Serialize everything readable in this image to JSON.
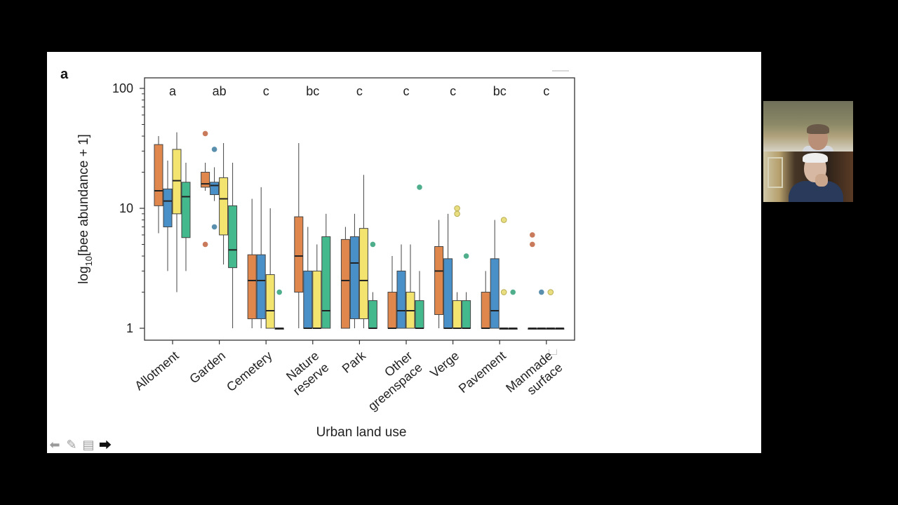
{
  "slide": {
    "panel_letter": "a",
    "controls": [
      {
        "name": "prev-arrow-icon",
        "glyph": "⬅"
      },
      {
        "name": "pen-icon",
        "glyph": "✎"
      },
      {
        "name": "menu-icon",
        "glyph": "▤"
      },
      {
        "name": "next-arrow-icon",
        "glyph": "⮕"
      }
    ]
  },
  "colors": {
    "groups": [
      "#E0874D",
      "#4A90C8",
      "#F2E46E",
      "#45B98E"
    ],
    "outliers": [
      "#C97A5A",
      "#5A8FAD",
      "#E8DE80",
      "#4FAE8C"
    ]
  },
  "chart_data": {
    "type": "boxplot",
    "scale": "log10",
    "title": "",
    "xlabel": "Urban land use",
    "ylabel": "log10[bee abundance + 1]",
    "ylabel_base": "log",
    "ylabel_sub": "10",
    "ylabel_rest": "[bee abundance + 1]",
    "ylim": [
      0.9,
      115
    ],
    "yticks": [
      1,
      10,
      100
    ],
    "ytick_labels": [
      "1",
      "10",
      "100"
    ],
    "grid": false,
    "categories": [
      {
        "label": [
          "Allotment"
        ],
        "letter": "a"
      },
      {
        "label": [
          "Garden"
        ],
        "letter": "ab"
      },
      {
        "label": [
          "Cemetery"
        ],
        "letter": "c"
      },
      {
        "label": [
          "Nature",
          "reserve"
        ],
        "letter": "bc"
      },
      {
        "label": [
          "Park"
        ],
        "letter": "c"
      },
      {
        "label": [
          "Other",
          "greenspace"
        ],
        "letter": "c"
      },
      {
        "label": [
          "Verge"
        ],
        "letter": "c"
      },
      {
        "label": [
          "Pavement"
        ],
        "letter": "bc"
      },
      {
        "label": [
          "Manmade",
          "surface"
        ],
        "letter": "c"
      }
    ],
    "boxes": [
      [
        {
          "lo": 6.2,
          "q1": 10.5,
          "med": 14,
          "q3": 34,
          "hi": 40,
          "out": []
        },
        {
          "lo": 3,
          "q1": 7,
          "med": 11.5,
          "q3": 14.5,
          "hi": 25,
          "out": []
        },
        {
          "lo": 2,
          "q1": 9,
          "med": 17,
          "q3": 31,
          "hi": 43,
          "out": []
        },
        {
          "lo": 3,
          "q1": 5.7,
          "med": 12.5,
          "q3": 16.5,
          "hi": 24,
          "out": []
        }
      ],
      [
        {
          "lo": 14,
          "q1": 15,
          "med": 16,
          "q3": 20,
          "hi": 24,
          "out": [
            42,
            5
          ]
        },
        {
          "lo": 11.5,
          "q1": 13,
          "med": 15.5,
          "q3": 16.5,
          "hi": 22,
          "out": [
            31,
            7
          ]
        },
        {
          "lo": 3.4,
          "q1": 6,
          "med": 12,
          "q3": 18,
          "hi": 35,
          "out": []
        },
        {
          "lo": 1,
          "q1": 3.2,
          "med": 4.5,
          "q3": 10.5,
          "hi": 24,
          "out": []
        }
      ],
      [
        {
          "lo": 1,
          "q1": 1.2,
          "med": 2.5,
          "q3": 4.1,
          "hi": 12,
          "out": []
        },
        {
          "lo": 1,
          "q1": 1.2,
          "med": 2.5,
          "q3": 4.1,
          "hi": 15,
          "out": []
        },
        {
          "lo": 1,
          "q1": 1,
          "med": 1.4,
          "q3": 2.8,
          "hi": 10,
          "out": []
        },
        {
          "lo": 1,
          "q1": 1,
          "med": 1,
          "q3": 1,
          "hi": 1,
          "out": [
            2
          ]
        }
      ],
      [
        {
          "lo": 1,
          "q1": 2,
          "med": 4,
          "q3": 8.5,
          "hi": 35,
          "out": []
        },
        {
          "lo": 1,
          "q1": 1,
          "med": 1,
          "q3": 3,
          "hi": 7,
          "out": []
        },
        {
          "lo": 1,
          "q1": 1,
          "med": 1,
          "q3": 3,
          "hi": 5,
          "out": []
        },
        {
          "lo": 1,
          "q1": 1,
          "med": 1.4,
          "q3": 5.8,
          "hi": 9,
          "out": []
        }
      ],
      [
        {
          "lo": 1,
          "q1": 1,
          "med": 2.5,
          "q3": 5.5,
          "hi": 7,
          "out": []
        },
        {
          "lo": 1,
          "q1": 1.2,
          "med": 3.5,
          "q3": 5.8,
          "hi": 9,
          "out": []
        },
        {
          "lo": 1,
          "q1": 1.2,
          "med": 2.5,
          "q3": 6.8,
          "hi": 19,
          "out": []
        },
        {
          "lo": 1,
          "q1": 1,
          "med": 1,
          "q3": 1.7,
          "hi": 2,
          "out": [
            5
          ]
        }
      ],
      [
        {
          "lo": 1,
          "q1": 1,
          "med": 1,
          "q3": 2,
          "hi": 4,
          "out": []
        },
        {
          "lo": 1,
          "q1": 1,
          "med": 1.4,
          "q3": 3,
          "hi": 5,
          "out": []
        },
        {
          "lo": 1,
          "q1": 1,
          "med": 1.4,
          "q3": 2,
          "hi": 5,
          "out": []
        },
        {
          "lo": 1,
          "q1": 1,
          "med": 1,
          "q3": 1.7,
          "hi": 3,
          "out": [
            15
          ]
        }
      ],
      [
        {
          "lo": 1,
          "q1": 1.3,
          "med": 3,
          "q3": 4.8,
          "hi": 8,
          "out": []
        },
        {
          "lo": 1,
          "q1": 1,
          "med": 1,
          "q3": 3.8,
          "hi": 9,
          "out": []
        },
        {
          "lo": 1,
          "q1": 1,
          "med": 1,
          "q3": 1.7,
          "hi": 2,
          "out": [
            10,
            9
          ]
        },
        {
          "lo": 1,
          "q1": 1,
          "med": 1,
          "q3": 1.7,
          "hi": 2,
          "out": [
            4
          ]
        }
      ],
      [
        {
          "lo": 1,
          "q1": 1,
          "med": 1,
          "q3": 2,
          "hi": 3,
          "out": []
        },
        {
          "lo": 1,
          "q1": 1,
          "med": 1.4,
          "q3": 3.8,
          "hi": 8,
          "out": []
        },
        {
          "lo": 1,
          "q1": 1,
          "med": 1,
          "q3": 1,
          "hi": 1,
          "out": [
            8,
            2
          ]
        },
        {
          "lo": 1,
          "q1": 1,
          "med": 1,
          "q3": 1,
          "hi": 1,
          "out": [
            2
          ]
        }
      ],
      [
        {
          "lo": 1,
          "q1": 1,
          "med": 1,
          "q3": 1,
          "hi": 1,
          "out": [
            6,
            5
          ]
        },
        {
          "lo": 1,
          "q1": 1,
          "med": 1,
          "q3": 1,
          "hi": 1,
          "out": [
            2
          ]
        },
        {
          "lo": 1,
          "q1": 1,
          "med": 1,
          "q3": 1,
          "hi": 1,
          "out": [
            2
          ]
        },
        {
          "lo": 1,
          "q1": 1,
          "med": 1,
          "q3": 1,
          "hi": 1,
          "out": []
        }
      ]
    ]
  }
}
